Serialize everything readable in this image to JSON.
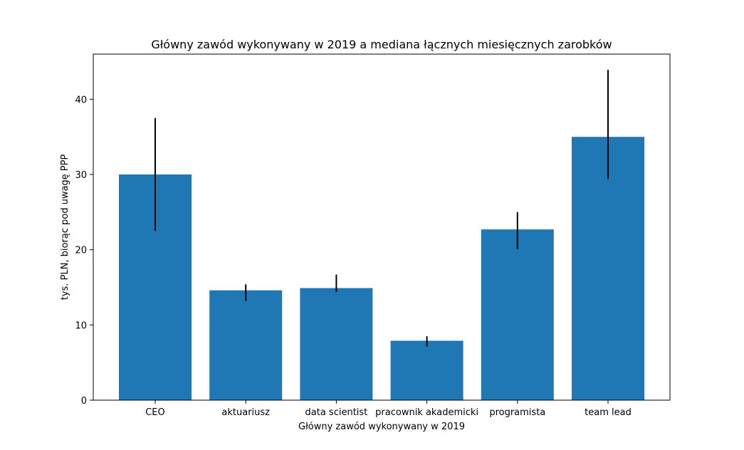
{
  "chart_data": {
    "type": "bar",
    "title": "Główny zawód wykonywany w 2019 a mediana łącznych miesięcznych zarobków",
    "xlabel": "Główny zawód wykonywany w 2019",
    "ylabel": "tys. PLN, biorąc pod uwagę PPP",
    "categories": [
      "CEO",
      "aktuariusz",
      "data scientist",
      "pracownik akademicki",
      "programista",
      "team lead"
    ],
    "values": [
      30.0,
      14.6,
      14.9,
      7.9,
      22.7,
      35.0
    ],
    "error_low": [
      22.5,
      13.2,
      14.4,
      7.1,
      20.1,
      29.4
    ],
    "error_high": [
      37.5,
      15.4,
      16.7,
      8.5,
      25.0,
      43.9
    ],
    "ylim": [
      0,
      46
    ],
    "yticks": [
      0,
      10,
      20,
      30,
      40
    ],
    "bar_color": "#1f77b4",
    "error_color": "#000000",
    "grid": false
  }
}
